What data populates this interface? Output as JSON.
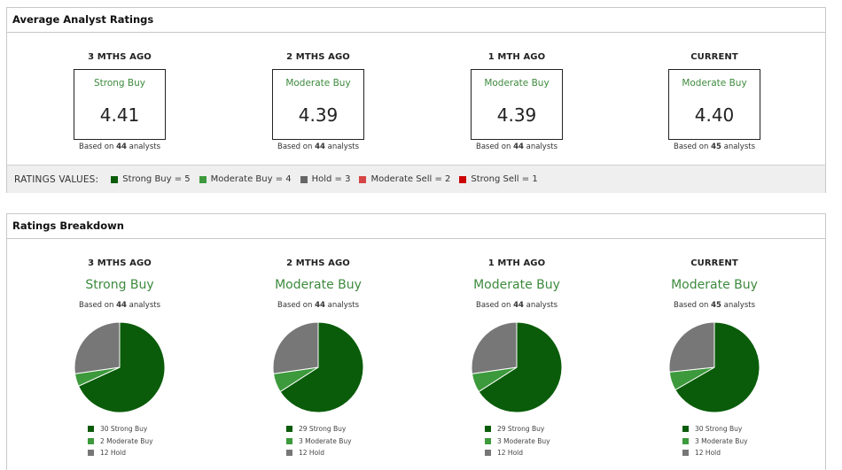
{
  "colors": {
    "strong_buy": "#0a5c0a",
    "moderate_buy": "#3c9a3c",
    "hold": "#777777",
    "moderate_sell": "#d64545",
    "strong_sell": "#cc0000",
    "rating_text": "#3d8a3d"
  },
  "average_ratings": {
    "title": "Average Analyst Ratings",
    "periods": [
      {
        "label": "3 MTHS AGO",
        "rating": "Strong Buy",
        "score": "4.41",
        "based_prefix": "Based on",
        "analysts": "44",
        "based_suffix": "analysts"
      },
      {
        "label": "2 MTHS AGO",
        "rating": "Moderate Buy",
        "score": "4.39",
        "based_prefix": "Based on",
        "analysts": "44",
        "based_suffix": "analysts"
      },
      {
        "label": "1 MTH AGO",
        "rating": "Moderate Buy",
        "score": "4.39",
        "based_prefix": "Based on",
        "analysts": "44",
        "based_suffix": "analysts"
      },
      {
        "label": "CURRENT",
        "rating": "Moderate Buy",
        "score": "4.40",
        "based_prefix": "Based on",
        "analysts": "45",
        "based_suffix": "analysts"
      }
    ],
    "ratings_values": {
      "title": "RATINGS VALUES:",
      "items": [
        {
          "label": "Strong Buy = 5",
          "color": "#0a5c0a"
        },
        {
          "label": "Moderate Buy = 4",
          "color": "#3c9a3c"
        },
        {
          "label": "Hold = 3",
          "color": "#666666"
        },
        {
          "label": "Moderate Sell = 2",
          "color": "#d64545"
        },
        {
          "label": "Strong Sell = 1",
          "color": "#cc0000"
        }
      ]
    }
  },
  "breakdown": {
    "title": "Ratings Breakdown",
    "periods": [
      {
        "label": "3 MTHS AGO",
        "rating": "Strong Buy",
        "based_prefix": "Based on",
        "analysts": "44",
        "based_suffix": "analysts",
        "legend": [
          "30 Strong Buy",
          "2 Moderate Buy",
          "12 Hold"
        ]
      },
      {
        "label": "2 MTHS AGO",
        "rating": "Moderate Buy",
        "based_prefix": "Based on",
        "analysts": "44",
        "based_suffix": "analysts",
        "legend": [
          "29 Strong Buy",
          "3 Moderate Buy",
          "12 Hold"
        ]
      },
      {
        "label": "1 MTH AGO",
        "rating": "Moderate Buy",
        "based_prefix": "Based on",
        "analysts": "44",
        "based_suffix": "analysts",
        "legend": [
          "29 Strong Buy",
          "3 Moderate Buy",
          "12 Hold"
        ]
      },
      {
        "label": "CURRENT",
        "rating": "Moderate Buy",
        "based_prefix": "Based on",
        "analysts": "45",
        "based_suffix": "analysts",
        "legend": [
          "30 Strong Buy",
          "3 Moderate Buy",
          "12 Hold"
        ]
      }
    ]
  },
  "chart_data": [
    {
      "type": "pie",
      "categories": [
        "Strong Buy",
        "Moderate Buy",
        "Hold"
      ],
      "values": [
        30,
        2,
        12
      ],
      "title": "3 MTHS AGO"
    },
    {
      "type": "pie",
      "categories": [
        "Strong Buy",
        "Moderate Buy",
        "Hold"
      ],
      "values": [
        29,
        3,
        12
      ],
      "title": "2 MTHS AGO"
    },
    {
      "type": "pie",
      "categories": [
        "Strong Buy",
        "Moderate Buy",
        "Hold"
      ],
      "values": [
        29,
        3,
        12
      ],
      "title": "1 MTH AGO"
    },
    {
      "type": "pie",
      "categories": [
        "Strong Buy",
        "Moderate Buy",
        "Hold"
      ],
      "values": [
        30,
        3,
        12
      ],
      "title": "CURRENT"
    }
  ]
}
